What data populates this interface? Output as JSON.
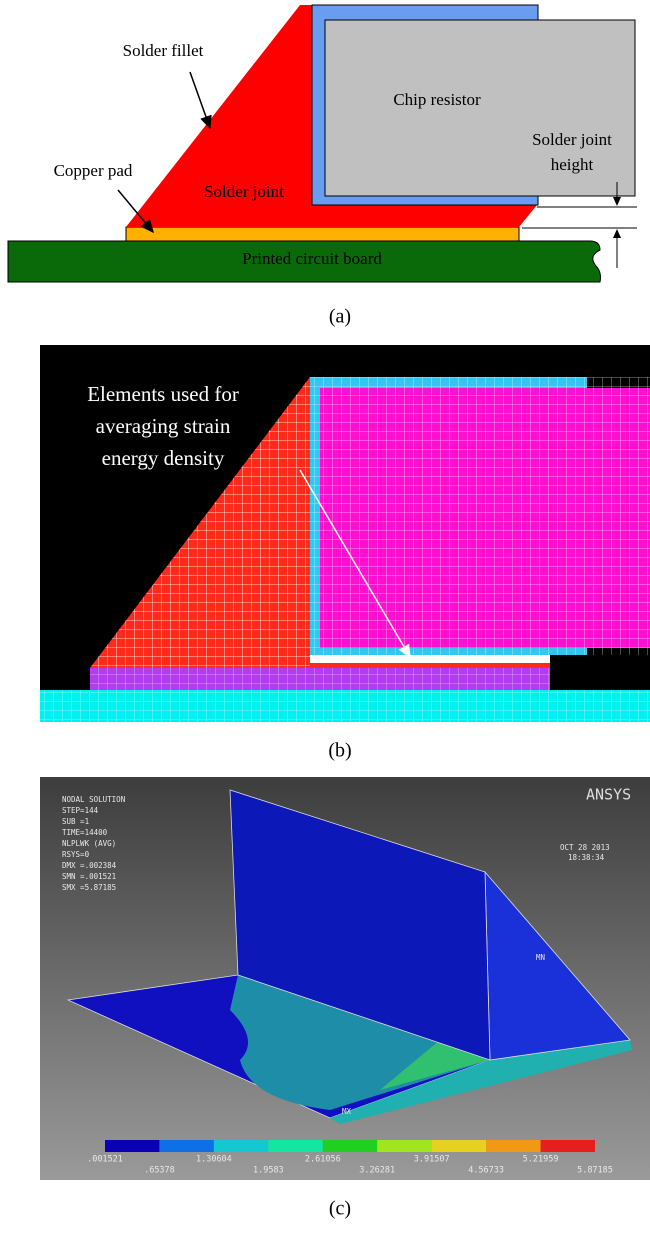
{
  "panel_a": {
    "solder_fillet": "Solder fillet",
    "chip_resistor": "Chip resistor",
    "joint_height_line1": "Solder joint",
    "joint_height_line2": "height",
    "copper_pad": "Copper pad",
    "solder_joint": "Solder joint",
    "pcb": "Printed circuit board",
    "caption": "(a)"
  },
  "panel_b": {
    "note_lines": [
      "Elements used for",
      "averaging strain",
      "energy density"
    ],
    "caption": "(b)"
  },
  "panel_c": {
    "info_lines": [
      "NODAL SOLUTION",
      "STEP=144",
      "SUB =1",
      "TIME=14400",
      "NLPLWK    (AVG)",
      "RSYS=0",
      "DMX =.002384",
      "SMN =.001521",
      "SMX =5.87185"
    ],
    "brand": "ANSYS",
    "date": "OCT 28 2013",
    "time": "18:38:34",
    "mn": "MN",
    "mx": "MX",
    "legend_colors": [
      "#0a00b4",
      "#0f6fe6",
      "#14c8d2",
      "#12e6a0",
      "#20d020",
      "#a0e61e",
      "#e6d21e",
      "#f09a14",
      "#e61e1e"
    ],
    "legend_labels": [
      ".001521",
      ".65378",
      "1.30604",
      "1.9583",
      "2.61056",
      "3.26281",
      "3.91507",
      "4.56733",
      "5.21959",
      "5.87185"
    ],
    "caption": "(c)"
  }
}
